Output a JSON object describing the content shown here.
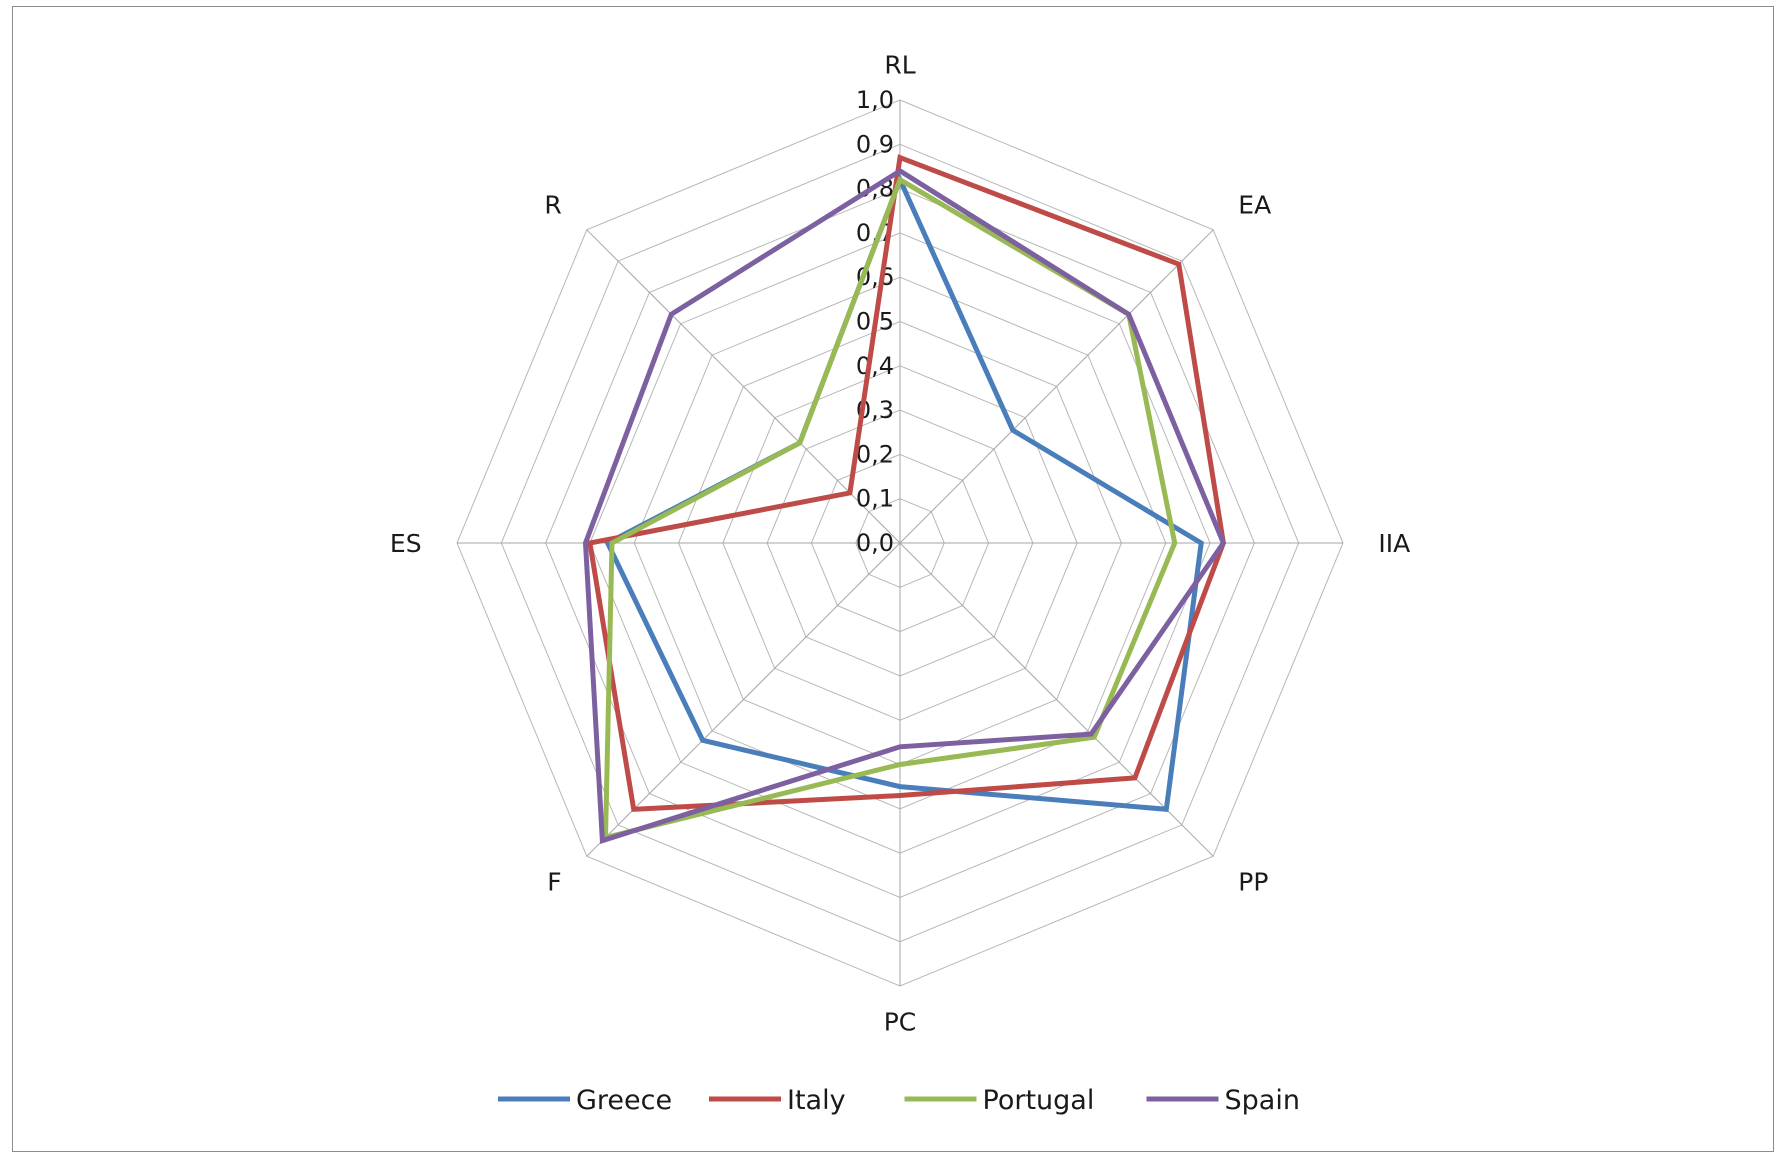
{
  "chart_data": {
    "type": "radar",
    "axes": [
      "RL",
      "EA",
      "IIA",
      "PP",
      "PC",
      "F",
      "ES",
      "R"
    ],
    "ticks": [
      "0,0",
      "0,1",
      "0,2",
      "0,3",
      "0,4",
      "0,5",
      "0,6",
      "0,7",
      "0,8",
      "0,9",
      "1,0"
    ],
    "range": [
      0,
      1.0
    ],
    "grid": true,
    "legend_position": "bottom",
    "series": [
      {
        "name": "Greece",
        "color": "#4a7ebb",
        "values": [
          0.82,
          0.36,
          0.68,
          0.85,
          0.55,
          0.63,
          0.66,
          0.32
        ]
      },
      {
        "name": "Italy",
        "color": "#be4b48",
        "values": [
          0.87,
          0.89,
          0.73,
          0.75,
          0.57,
          0.85,
          0.7,
          0.16
        ]
      },
      {
        "name": "Portugal",
        "color": "#98b954",
        "values": [
          0.82,
          0.73,
          0.62,
          0.62,
          0.5,
          0.94,
          0.65,
          0.32
        ]
      },
      {
        "name": "Spain",
        "color": "#7d60a0",
        "values": [
          0.84,
          0.73,
          0.73,
          0.61,
          0.46,
          0.95,
          0.71,
          0.73
        ]
      }
    ]
  }
}
